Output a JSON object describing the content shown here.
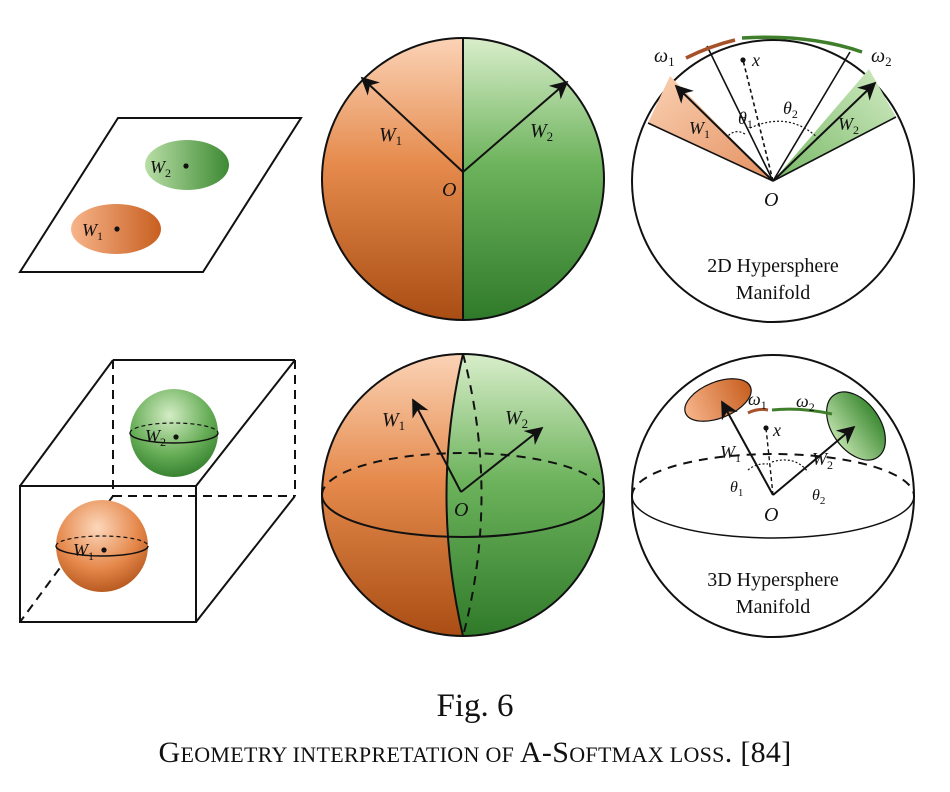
{
  "figure": {
    "number": "Fig. 6",
    "caption_parts": [
      "G",
      "EOMETRY INTERPRETATION OF ",
      "A-S",
      "OFTMAX LOSS",
      ". [84]"
    ]
  },
  "labels": {
    "w1": "W",
    "w2": "W",
    "sub1": "1",
    "sub2": "2",
    "origin": "O",
    "x": "x",
    "omega1": "ω",
    "omega2": "ω",
    "theta1": "θ",
    "theta2": "θ",
    "manifold_2d_line1": "2D Hypersphere",
    "manifold_2d_line2": "Manifold",
    "manifold_3d_line1": "3D Hypersphere",
    "manifold_3d_line2": "Manifold"
  },
  "colors": {
    "orange_light": "#f9c7a4",
    "orange_dark": "#a94d14",
    "green_light": "#d4ebc7",
    "green_dark": "#2f7a2a",
    "arc_orange": "#a5522a",
    "arc_green": "#3f7f2c"
  }
}
